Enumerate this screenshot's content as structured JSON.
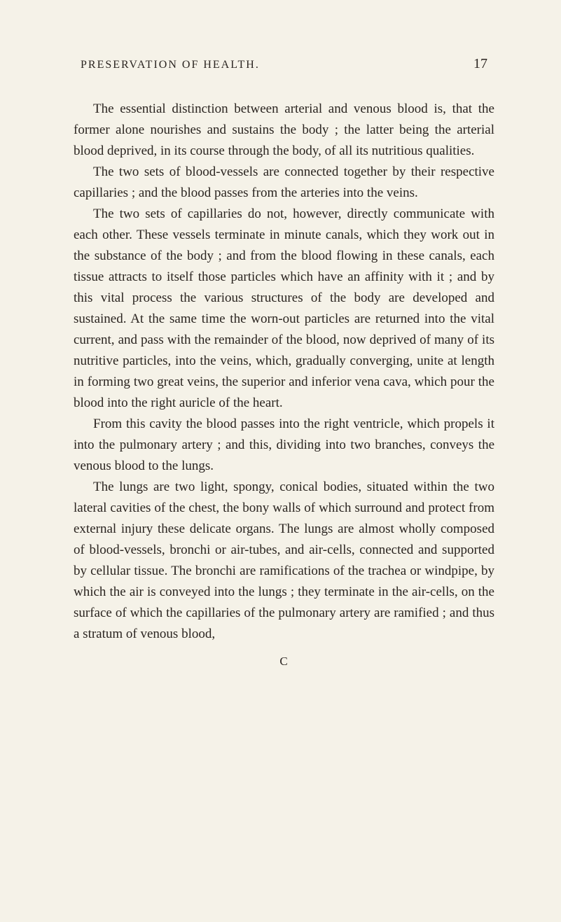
{
  "header": {
    "title": "PRESERVATION OF HEALTH.",
    "page_number": "17"
  },
  "paragraphs": [
    "The essential distinction between arterial and venous blood is, that the former alone nourishes and sustains the body ; the latter being the arterial blood deprived, in its course through the body, of all its nutritious qualities.",
    "The two sets of blood-vessels are connected together by their respective capillaries ; and the blood passes from the arteries into the veins.",
    "The two sets of capillaries do not, however, directly communicate with each other. These vessels terminate in minute canals, which they work out in the substance of the body ; and from the blood flowing in these canals, each tissue attracts to itself those particles which have an affinity with it ; and by this vital process the various structures of the body are developed and sustained. At the same time the worn-out particles are returned into the vital current, and pass with the remainder of the blood, now deprived of many of its nutritive particles, into the veins, which, gradually converging, unite at length in forming two great veins, the superior and inferior vena cava, which pour the blood into the right auricle of the heart.",
    "From this cavity the blood passes into the right ventricle, which propels it into the pulmonary artery ; and this, dividing into two branches, conveys the venous blood to the lungs.",
    "The lungs are two light, spongy, conical bodies, situated within the two lateral cavities of the chest, the bony walls of which surround and protect from external injury these delicate organs. The lungs are almost wholly composed of blood-vessels, bronchi or air-tubes, and air-cells, connected and supported by cellular tissue. The bronchi are ramifications of the trachea or windpipe, by which the air is conveyed into the lungs ; they terminate in the air-cells, on the surface of which the capillaries of the pulmonary artery are ramified ; and thus a stratum of venous blood,"
  ],
  "signature_mark": "C"
}
